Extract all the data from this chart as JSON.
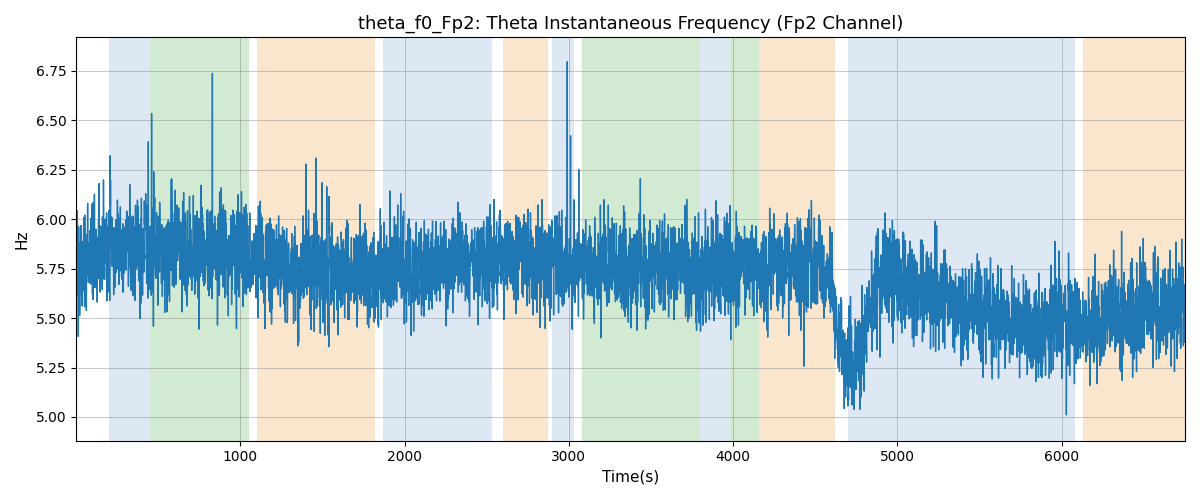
{
  "title": "theta_f0_Fp2: Theta Instantaneous Frequency (Fp2 Channel)",
  "xlabel": "Time(s)",
  "ylabel": "Hz",
  "xlim": [
    0,
    6750
  ],
  "ylim": [
    4.88,
    6.92
  ],
  "line_color": "#1f77b4",
  "line_width": 1.0,
  "background_color": "#ffffff",
  "grid": true,
  "seed": 42,
  "n_points": 6750,
  "colored_bands": [
    {
      "xmin": 200,
      "xmax": 450,
      "color": "#aec6e8",
      "alpha": 0.4
    },
    {
      "xmin": 450,
      "xmax": 1050,
      "color": "#90c890",
      "alpha": 0.4
    },
    {
      "xmin": 1100,
      "xmax": 1820,
      "color": "#f5c890",
      "alpha": 0.45
    },
    {
      "xmin": 1870,
      "xmax": 2530,
      "color": "#aec6e8",
      "alpha": 0.4
    },
    {
      "xmin": 2600,
      "xmax": 2870,
      "color": "#f5c890",
      "alpha": 0.45
    },
    {
      "xmin": 2900,
      "xmax": 3030,
      "color": "#aec6e8",
      "alpha": 0.4
    },
    {
      "xmin": 3080,
      "xmax": 3800,
      "color": "#90c890",
      "alpha": 0.4
    },
    {
      "xmin": 3800,
      "xmax": 3980,
      "color": "#aec6e8",
      "alpha": 0.4
    },
    {
      "xmin": 3980,
      "xmax": 4160,
      "color": "#90c890",
      "alpha": 0.4
    },
    {
      "xmin": 4160,
      "xmax": 4620,
      "color": "#f5c890",
      "alpha": 0.45
    },
    {
      "xmin": 4700,
      "xmax": 6080,
      "color": "#aec6e8",
      "alpha": 0.4
    },
    {
      "xmin": 6130,
      "xmax": 6750,
      "color": "#f5c890",
      "alpha": 0.45
    }
  ],
  "title_fontsize": 13,
  "label_fontsize": 11,
  "tick_fontsize": 10,
  "yticks": [
    5.0,
    5.25,
    5.5,
    5.75,
    6.0,
    6.25,
    6.5,
    6.75
  ],
  "xticks": [
    1000,
    2000,
    3000,
    4000,
    5000,
    6000
  ]
}
